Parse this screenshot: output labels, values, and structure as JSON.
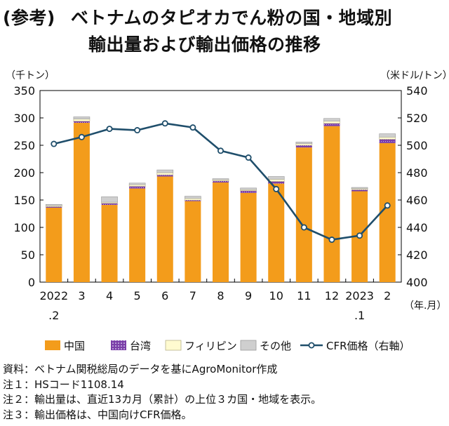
{
  "title": {
    "tag": "(参考)",
    "line1": "ベトナムのタピオカでん粉の国・地域別",
    "line2": "輸出量および輸出価格の推移"
  },
  "notes": [
    "資料：ベトナム関税総局のデータを基にAgroMonitor作成",
    "注１：HSコード1108.14",
    "注２：輸出量は、直近13カ月（累計）の上位３カ国・地域を表示。",
    "注３：輸出価格は、中国向けCFR価格。"
  ],
  "colors": {
    "china": "#F39C1B",
    "taiwan": "#7B3FA8",
    "philippines": "#FFFBD0",
    "other": "#CFCFCF",
    "cfr": "#1F4E6B"
  },
  "chart_data": {
    "type": "bar",
    "stacked": true,
    "left_axis_unit": "（千トン）",
    "right_axis_unit": "（米ドル/トン）",
    "x_axis_unit": "（年.月）",
    "categories": [
      [
        "2022",
        ".2"
      ],
      [
        "3",
        ""
      ],
      [
        "4",
        ""
      ],
      [
        "5",
        ""
      ],
      [
        "6",
        ""
      ],
      [
        "7",
        ""
      ],
      [
        "8",
        ""
      ],
      [
        "9",
        ""
      ],
      [
        "10",
        ""
      ],
      [
        "11",
        ""
      ],
      [
        "12",
        ""
      ],
      [
        "2023",
        ".1"
      ],
      [
        "2",
        ""
      ]
    ],
    "ylim_left": [
      0,
      350
    ],
    "yticks_left": [
      "0",
      "50",
      "100",
      "150",
      "200",
      "250",
      "300",
      "350"
    ],
    "ylim_right": [
      400,
      540
    ],
    "yticks_right": [
      "400",
      "420",
      "440",
      "460",
      "480",
      "500",
      "520",
      "540"
    ],
    "grid": false,
    "legend_position": "bottom",
    "series": [
      {
        "name": "中国",
        "key": "china",
        "axis": "left",
        "values": [
          136,
          291,
          141,
          171,
          193,
          148,
          182,
          163,
          180,
          246,
          285,
          166,
          254
        ]
      },
      {
        "name": "台湾",
        "key": "taiwan",
        "axis": "left",
        "values": [
          2,
          3,
          3,
          4,
          3,
          2,
          3,
          4,
          4,
          4,
          5,
          3,
          7
        ]
      },
      {
        "name": "フィリピン",
        "key": "philippines",
        "axis": "left",
        "values": [
          2,
          4,
          2,
          3,
          4,
          3,
          2,
          2,
          4,
          3,
          4,
          2,
          4
        ]
      },
      {
        "name": "その他",
        "key": "other",
        "axis": "left",
        "values": [
          2,
          4,
          10,
          3,
          5,
          4,
          2,
          3,
          5,
          3,
          5,
          2,
          6
        ]
      },
      {
        "name": "CFR価格（右軸）",
        "key": "cfr",
        "type": "line",
        "axis": "right",
        "values": [
          501,
          506,
          512,
          511,
          516,
          513,
          496,
          491,
          468,
          440,
          431,
          434,
          456
        ]
      }
    ]
  }
}
